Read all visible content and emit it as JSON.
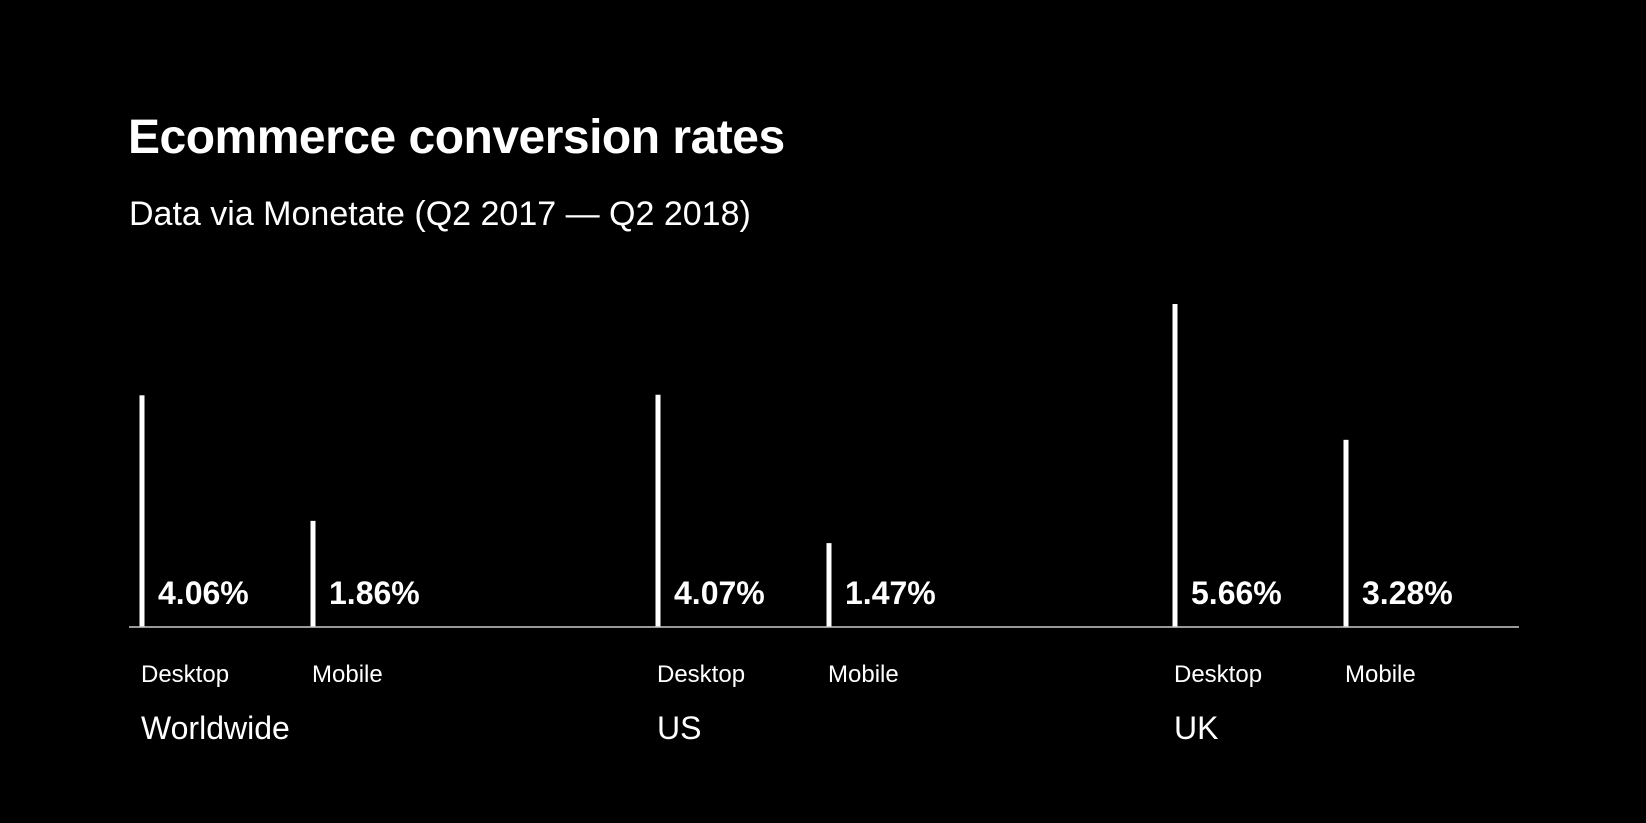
{
  "title": "Ecommerce conversion rates",
  "subtitle": "Data via Monetate (Q2 2017 — Q2 2018)",
  "colors": {
    "background": "#000000",
    "foreground": "#ffffff"
  },
  "chart_data": {
    "type": "bar",
    "title": "Ecommerce conversion rates",
    "subtitle": "Data via Monetate (Q2 2017 — Q2 2018)",
    "categories": [
      "Worldwide",
      "US",
      "UK"
    ],
    "series": [
      {
        "name": "Desktop",
        "values": [
          4.06,
          4.07,
          5.66
        ],
        "labels": [
          "4.06%",
          "4.07%",
          "5.66%"
        ]
      },
      {
        "name": "Mobile",
        "values": [
          1.86,
          1.47,
          3.28
        ],
        "labels": [
          "1.86%",
          "1.47%",
          "3.28%"
        ]
      }
    ],
    "unit": "%",
    "ylim": [
      0,
      5.66
    ],
    "grid": false,
    "legend": "none"
  }
}
